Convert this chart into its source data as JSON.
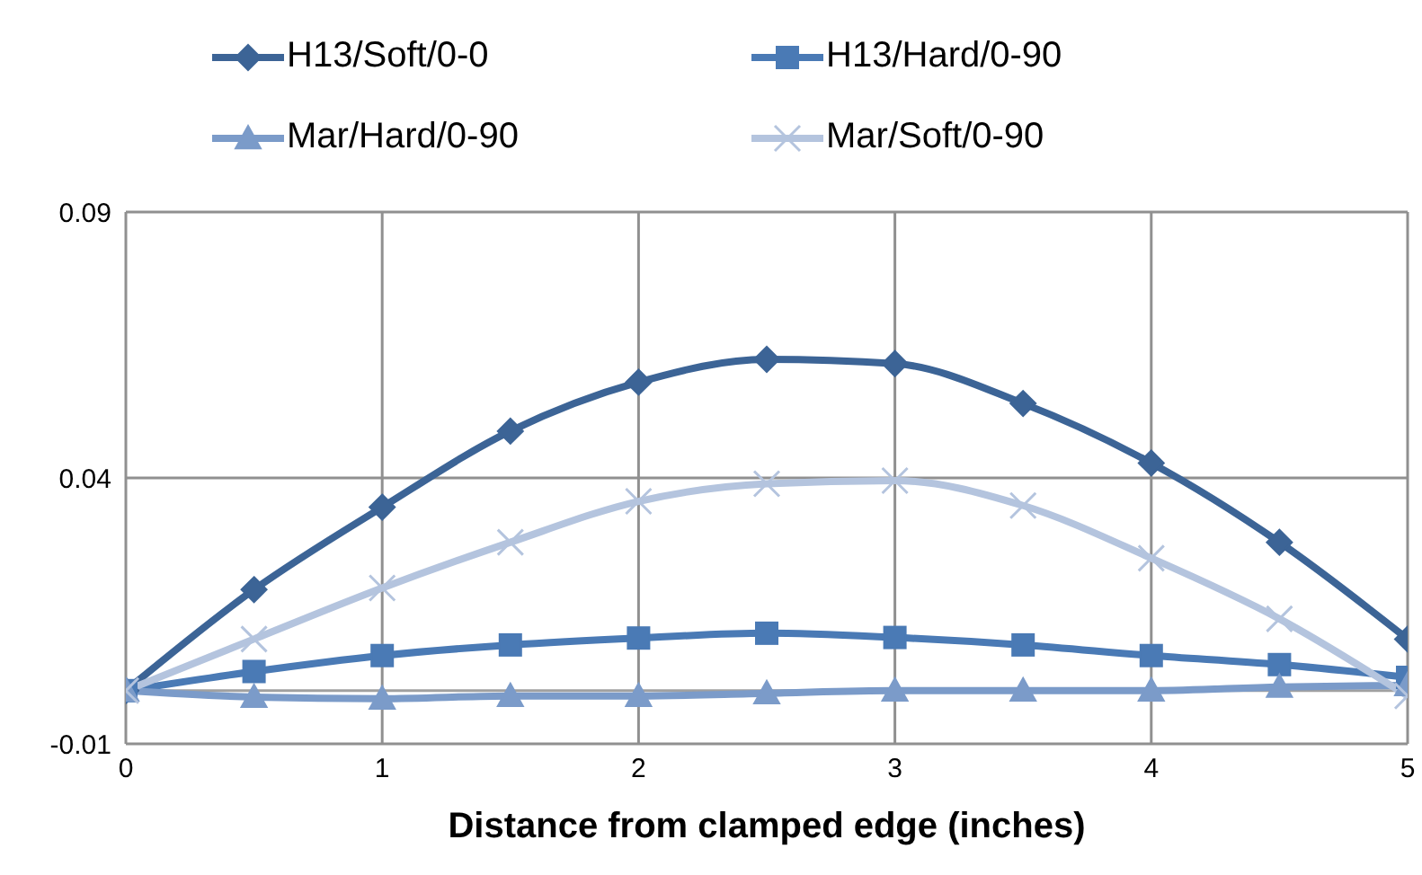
{
  "chart_data": {
    "type": "line",
    "xlabel": "Distance from clamped edge (inches)",
    "x": [
      0,
      0.5,
      1,
      1.5,
      2,
      2.5,
      3,
      3.5,
      4,
      4.5,
      5
    ],
    "series": [
      {
        "name": "H13/Soft/0-0",
        "color": "#3c6496",
        "marker": "diamond",
        "values": [
          0,
          0.019,
          0.0345,
          0.0488,
          0.058,
          0.0623,
          0.0615,
          0.054,
          0.0428,
          0.0279,
          0.0097
        ]
      },
      {
        "name": "H13/Hard/0-90",
        "color": "#4a7ab5",
        "marker": "square",
        "values": [
          0,
          0.0036,
          0.0066,
          0.0086,
          0.0099,
          0.0108,
          0.01,
          0.0086,
          0.0066,
          0.0049,
          0.0025
        ]
      },
      {
        "name": "Mar/Hard/0-90",
        "color": "#7b9bc9",
        "marker": "triangle",
        "values": [
          0,
          -0.0012,
          -0.0015,
          -0.001,
          -0.001,
          -0.0005,
          0,
          0,
          0,
          0.0007,
          0.001
        ]
      },
      {
        "name": "Mar/Soft/0-90",
        "color": "#b4c4de",
        "marker": "cross",
        "values": [
          0,
          0.0097,
          0.0193,
          0.0279,
          0.0356,
          0.0389,
          0.0395,
          0.0348,
          0.0249,
          0.0135,
          -0.001
        ]
      }
    ],
    "xlim": [
      0,
      5
    ],
    "xticks": [
      0,
      1,
      2,
      3,
      4,
      5
    ],
    "ylim": [
      -0.01,
      0.09
    ],
    "yticks": [
      -0.01,
      0.04,
      0.09
    ],
    "ref_lines": [
      {
        "axis": "y",
        "value": 0,
        "color": "#a0a0a0"
      }
    ],
    "grid": true,
    "legend": "top",
    "line_style": "solid"
  }
}
